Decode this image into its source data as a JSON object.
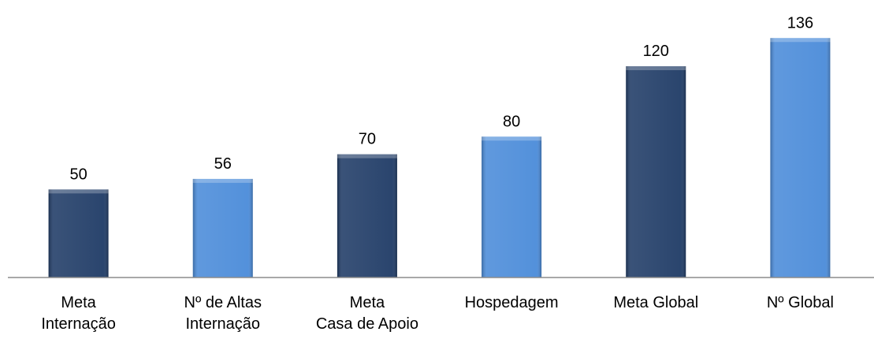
{
  "chart_data": {
    "type": "bar",
    "categories": [
      [
        "Meta",
        "Internação"
      ],
      [
        "Nº de Altas",
        "Internação"
      ],
      [
        "Meta",
        "Casa de Apoio"
      ],
      [
        "Hospedagem"
      ],
      [
        "Meta Global"
      ],
      [
        "Nº Global"
      ]
    ],
    "values": [
      50,
      56,
      70,
      80,
      120,
      136
    ],
    "colors": [
      "#1f3b66",
      "#4a8bd9",
      "#1f3b66",
      "#4a8bd9",
      "#1f3b66",
      "#4a8bd9"
    ],
    "ylim": [
      0,
      150
    ]
  }
}
